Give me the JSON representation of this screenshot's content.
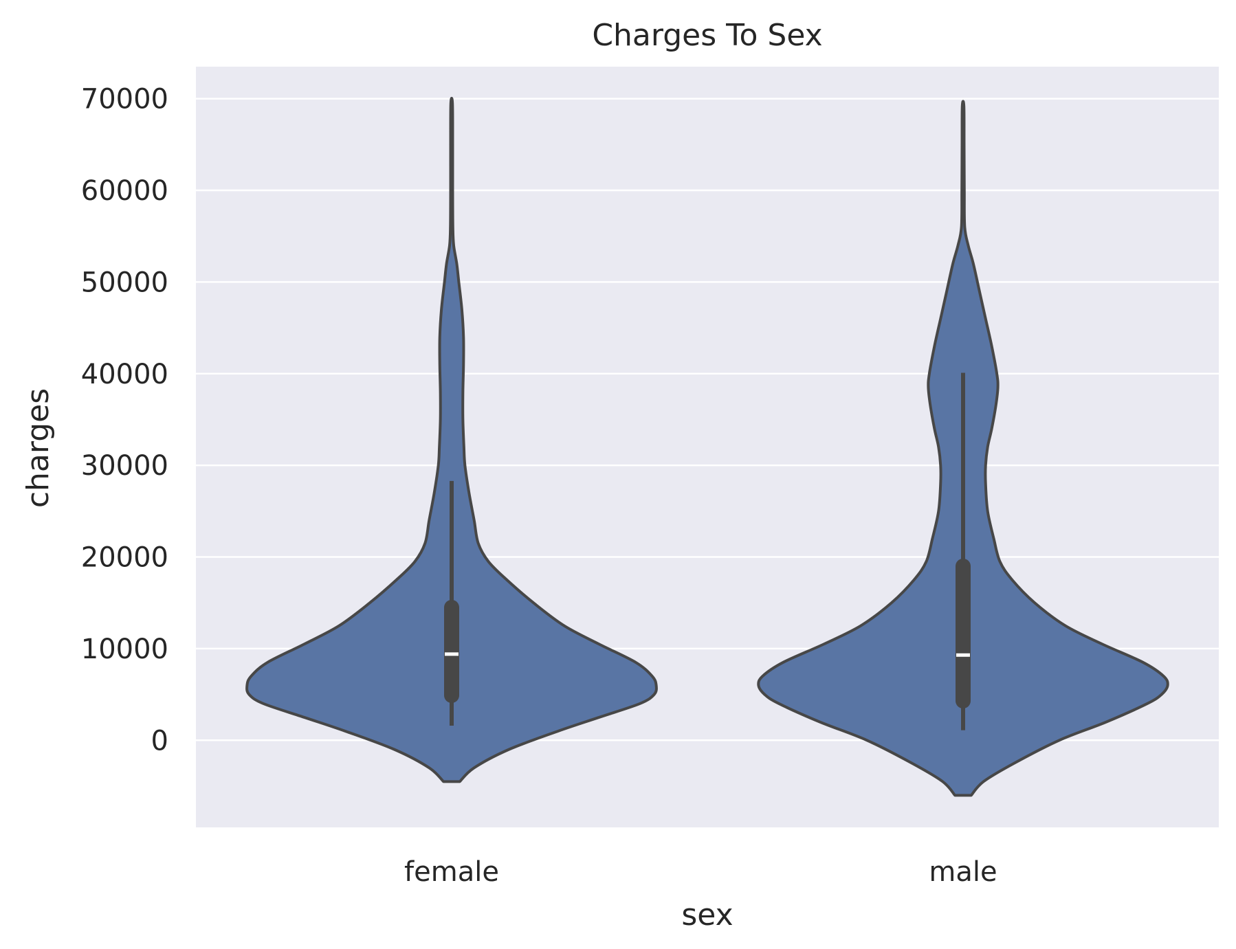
{
  "chart_data": {
    "type": "violin",
    "title": "Charges To Sex",
    "xlabel": "sex",
    "ylabel": "charges",
    "categories": [
      "female",
      "male"
    ],
    "ylim": [
      -9500,
      73500
    ],
    "yticks": [
      0,
      10000,
      20000,
      30000,
      40000,
      50000,
      60000,
      70000
    ],
    "ytick_labels": [
      "0",
      "10000",
      "20000",
      "30000",
      "40000",
      "50000",
      "60000",
      "70000"
    ],
    "grid": true,
    "legend": "none",
    "colors": {
      "background": "#eaeaf2",
      "violin_fill": "#5975a4",
      "outline": "#474747",
      "grid": "#ffffff",
      "median": "#ffffff"
    },
    "series": [
      {
        "category": "female",
        "box": {
          "whisker_low": 1600,
          "q1": 4900,
          "median": 9400,
          "q3": 14500,
          "whisker_high": 28300
        },
        "range": [
          -4500,
          69500
        ],
        "density_profile": [
          [
            -4500,
            0.04
          ],
          [
            -3000,
            0.11
          ],
          [
            -1000,
            0.28
          ],
          [
            1000,
            0.52
          ],
          [
            2500,
            0.72
          ],
          [
            4000,
            0.92
          ],
          [
            5000,
            0.99
          ],
          [
            6000,
            1.0
          ],
          [
            7000,
            0.98
          ],
          [
            8500,
            0.9
          ],
          [
            10500,
            0.72
          ],
          [
            12500,
            0.55
          ],
          [
            15000,
            0.4
          ],
          [
            17500,
            0.27
          ],
          [
            19500,
            0.18
          ],
          [
            21500,
            0.13
          ],
          [
            24000,
            0.11
          ],
          [
            27000,
            0.085
          ],
          [
            30000,
            0.065
          ],
          [
            32000,
            0.06
          ],
          [
            35000,
            0.055
          ],
          [
            38000,
            0.055
          ],
          [
            41000,
            0.058
          ],
          [
            44000,
            0.058
          ],
          [
            47000,
            0.05
          ],
          [
            50000,
            0.035
          ],
          [
            52000,
            0.025
          ],
          [
            54000,
            0.01
          ],
          [
            56000,
            0.006
          ],
          [
            60000,
            0.005
          ],
          [
            65000,
            0.005
          ],
          [
            69500,
            0.004
          ]
        ]
      },
      {
        "category": "male",
        "box": {
          "whisker_low": 1100,
          "q1": 4300,
          "median": 9300,
          "q3": 19000,
          "whisker_high": 40100
        },
        "range": [
          -6000,
          69200
        ],
        "density_profile": [
          [
            -6000,
            0.04
          ],
          [
            -4500,
            0.1
          ],
          [
            -2500,
            0.25
          ],
          [
            0,
            0.47
          ],
          [
            2000,
            0.7
          ],
          [
            4000,
            0.9
          ],
          [
            5000,
            0.97
          ],
          [
            6000,
            1.0
          ],
          [
            7000,
            0.98
          ],
          [
            8500,
            0.88
          ],
          [
            10500,
            0.68
          ],
          [
            12500,
            0.5
          ],
          [
            15000,
            0.35
          ],
          [
            17500,
            0.24
          ],
          [
            19500,
            0.18
          ],
          [
            22000,
            0.15
          ],
          [
            25000,
            0.12
          ],
          [
            28000,
            0.11
          ],
          [
            30000,
            0.11
          ],
          [
            32000,
            0.12
          ],
          [
            34000,
            0.14
          ],
          [
            36500,
            0.16
          ],
          [
            38500,
            0.17
          ],
          [
            40000,
            0.165
          ],
          [
            43000,
            0.14
          ],
          [
            46000,
            0.11
          ],
          [
            49000,
            0.08
          ],
          [
            52000,
            0.05
          ],
          [
            54000,
            0.025
          ],
          [
            56000,
            0.008
          ],
          [
            60000,
            0.006
          ],
          [
            65000,
            0.005
          ],
          [
            69200,
            0.004
          ]
        ]
      }
    ]
  }
}
